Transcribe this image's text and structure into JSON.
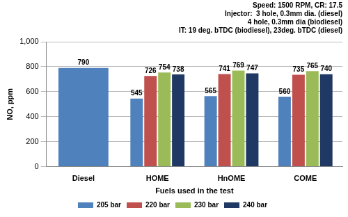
{
  "chart_data": {
    "type": "bar",
    "title": [
      "Speed: 1500 RPM, CR: 17.5",
      "Injector:  3 hole, 0.3mm dia. (diesel)",
      "4 hole, 0.3mm dia (biodiesel)",
      "IT: 19 deg. bTDC (biodiesel), 23deg. bTDC (diesel)"
    ],
    "x_label": "Fuels used in the test",
    "y_label": "NO, ppm",
    "categories": [
      "Diesel",
      "HOME",
      "HnOME",
      "COME"
    ],
    "series": [
      {
        "name": "205 bar",
        "color": "#4f81bd",
        "values": [
          790,
          545,
          565,
          560
        ]
      },
      {
        "name": "220 bar",
        "color": "#c0504d",
        "values": [
          null,
          726,
          741,
          735
        ]
      },
      {
        "name": "230 bar",
        "color": "#9bbb59",
        "values": [
          null,
          754,
          769,
          765
        ]
      },
      {
        "name": "240 bar",
        "color": "#1f3864",
        "values": [
          null,
          738,
          747,
          740
        ]
      }
    ],
    "ylim": [
      0,
      1000
    ],
    "yticks": [
      0,
      200,
      400,
      600,
      800,
      1000
    ],
    "grid": true,
    "legend": "bottom",
    "data_labels": true
  }
}
